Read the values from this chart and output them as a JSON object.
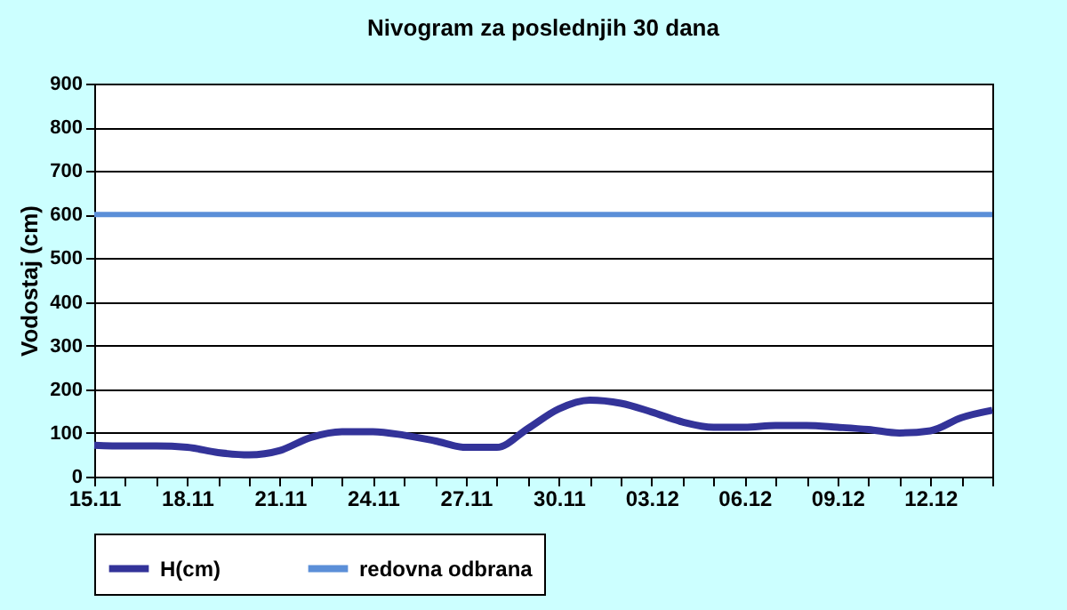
{
  "chart_data": {
    "type": "line",
    "title": "Nivogram za poslednjih 30 dana",
    "ylabel": "Vodostaj (cm)",
    "categories": [
      "15.11",
      null,
      null,
      "18.11",
      null,
      null,
      "21.11",
      null,
      null,
      "24.11",
      null,
      null,
      "27.11",
      null,
      null,
      "30.11",
      null,
      null,
      "03.12",
      null,
      null,
      "06.12",
      null,
      null,
      "09.12",
      null,
      null,
      "12.12",
      null,
      null
    ],
    "series": [
      {
        "name": "H(cm)",
        "color": "#333399",
        "values": [
          72,
          70,
          70,
          67,
          55,
          50,
          60,
          90,
          103,
          103,
          95,
          82,
          67,
          67,
          110,
          155,
          175,
          168,
          148,
          125,
          113,
          113,
          117,
          117,
          113,
          108,
          100,
          105,
          135,
          152
        ]
      }
    ],
    "ref_lines": [
      {
        "axis": "y",
        "value": 600,
        "label": "redovna odbrana",
        "color": "#5b8fd8"
      }
    ],
    "ylim": [
      0,
      900
    ],
    "yticks": [
      0,
      100,
      200,
      300,
      400,
      500,
      600,
      700,
      800,
      900
    ],
    "grid": "y",
    "legend": "bottom",
    "marker": "none",
    "line_style": "solid"
  }
}
